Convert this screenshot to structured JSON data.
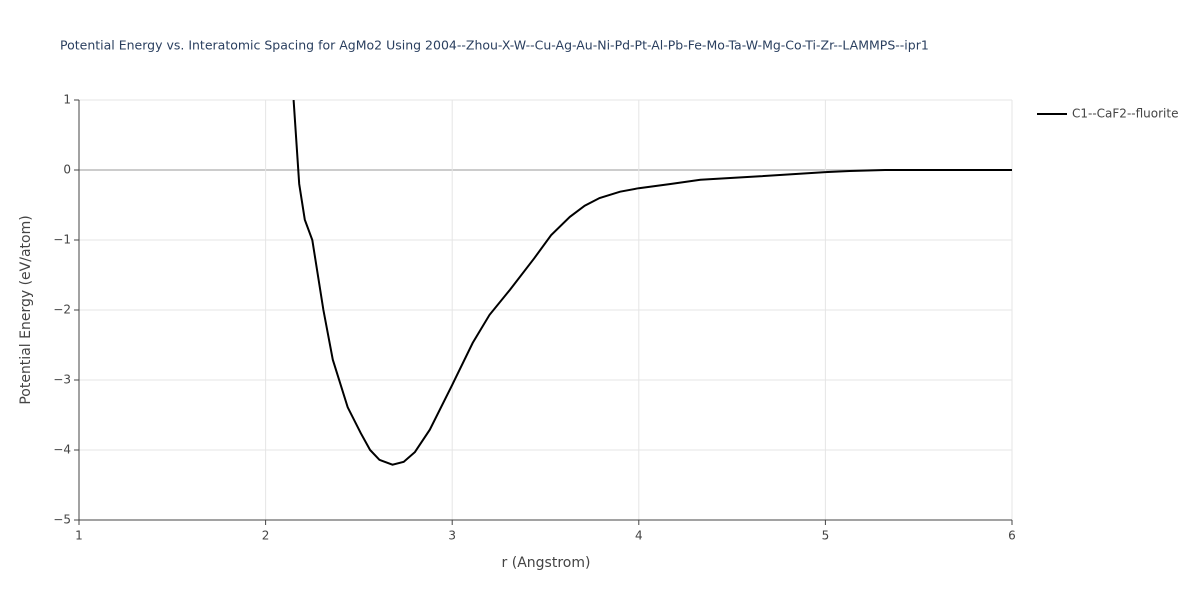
{
  "chart_data": {
    "type": "line",
    "title": "Potential Energy vs. Interatomic Spacing for AgMo2 Using 2004--Zhou-X-W--Cu-Ag-Au-Ni-Pd-Pt-Al-Pb-Fe-Mo-Ta-W-Mg-Co-Ti-Zr--LAMMPS--ipr1",
    "xlabel": "r (Angstrom)",
    "ylabel": "Potential Energy (eV/atom)",
    "xlim": [
      1,
      6
    ],
    "ylim": [
      -5,
      1
    ],
    "xticks": [
      1,
      2,
      3,
      4,
      5,
      6
    ],
    "yticks": [
      {
        "value": -5,
        "label": "−5"
      },
      {
        "value": -4,
        "label": "−4"
      },
      {
        "value": -3,
        "label": "−3"
      },
      {
        "value": -2,
        "label": "−2"
      },
      {
        "value": -1,
        "label": "−1"
      },
      0,
      1
    ],
    "grid": true,
    "legend": "right",
    "x": [
      2.15,
      2.18,
      2.21,
      2.25,
      2.31,
      2.36,
      2.44,
      2.51,
      2.56,
      2.61,
      2.68,
      2.74,
      2.8,
      2.88,
      3.0,
      3.11,
      3.2,
      3.31,
      3.44,
      3.53,
      3.63,
      3.71,
      3.79,
      3.9,
      4.0,
      4.17,
      4.33,
      4.65,
      5.0,
      5.13,
      5.32,
      6.0
    ],
    "series": [
      {
        "name": "C1--CaF2--fluorite",
        "color": "#000000",
        "values": [
          1.0,
          -0.2,
          -0.71,
          -1.0,
          -2.0,
          -2.71,
          -3.39,
          -3.76,
          -4.0,
          -4.14,
          -4.21,
          -4.17,
          -4.03,
          -3.71,
          -3.07,
          -2.47,
          -2.07,
          -1.71,
          -1.26,
          -0.93,
          -0.67,
          -0.51,
          -0.4,
          -0.31,
          -0.26,
          -0.2,
          -0.14,
          -0.09,
          -0.03,
          -0.014,
          0,
          0
        ]
      }
    ]
  }
}
